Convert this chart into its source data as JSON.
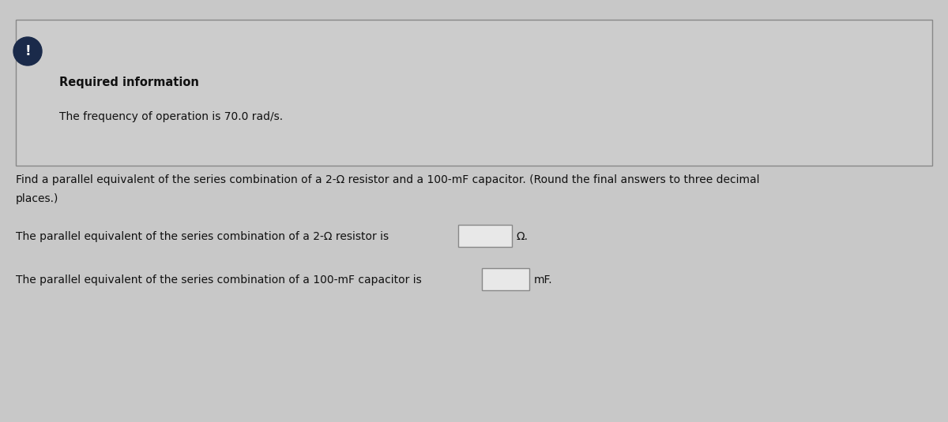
{
  "bg_color": "#c8c8c8",
  "info_box_bg": "#cccccc",
  "info_box_border": "#888888",
  "info_box_title": "Required information",
  "info_box_text": "The frequency of operation is 70.0 rad/s.",
  "exclamation_bg": "#1a2a4a",
  "exclamation_text": "!",
  "question_line1": "Find a parallel equivalent of the series combination of a 2-Ω resistor and a 100-mF capacitor. (Round the final answers to three decimal",
  "question_line2": "places.)",
  "answer_line1_pre": "The parallel equivalent of the series combination of a 2-Ω resistor is",
  "answer_line1_post": "Ω.",
  "answer_line2_pre": "The parallel equivalent of the series combination of a 100-mF capacitor is",
  "answer_line2_post": "mF.",
  "input_box_color": "#e8e8e8",
  "input_box_border": "#888888",
  "text_color": "#111111",
  "title_fontsize": 10.5,
  "body_fontsize": 10.0,
  "info_title_fontweight": "bold",
  "fig_width": 12.0,
  "fig_height": 5.35,
  "dpi": 100
}
